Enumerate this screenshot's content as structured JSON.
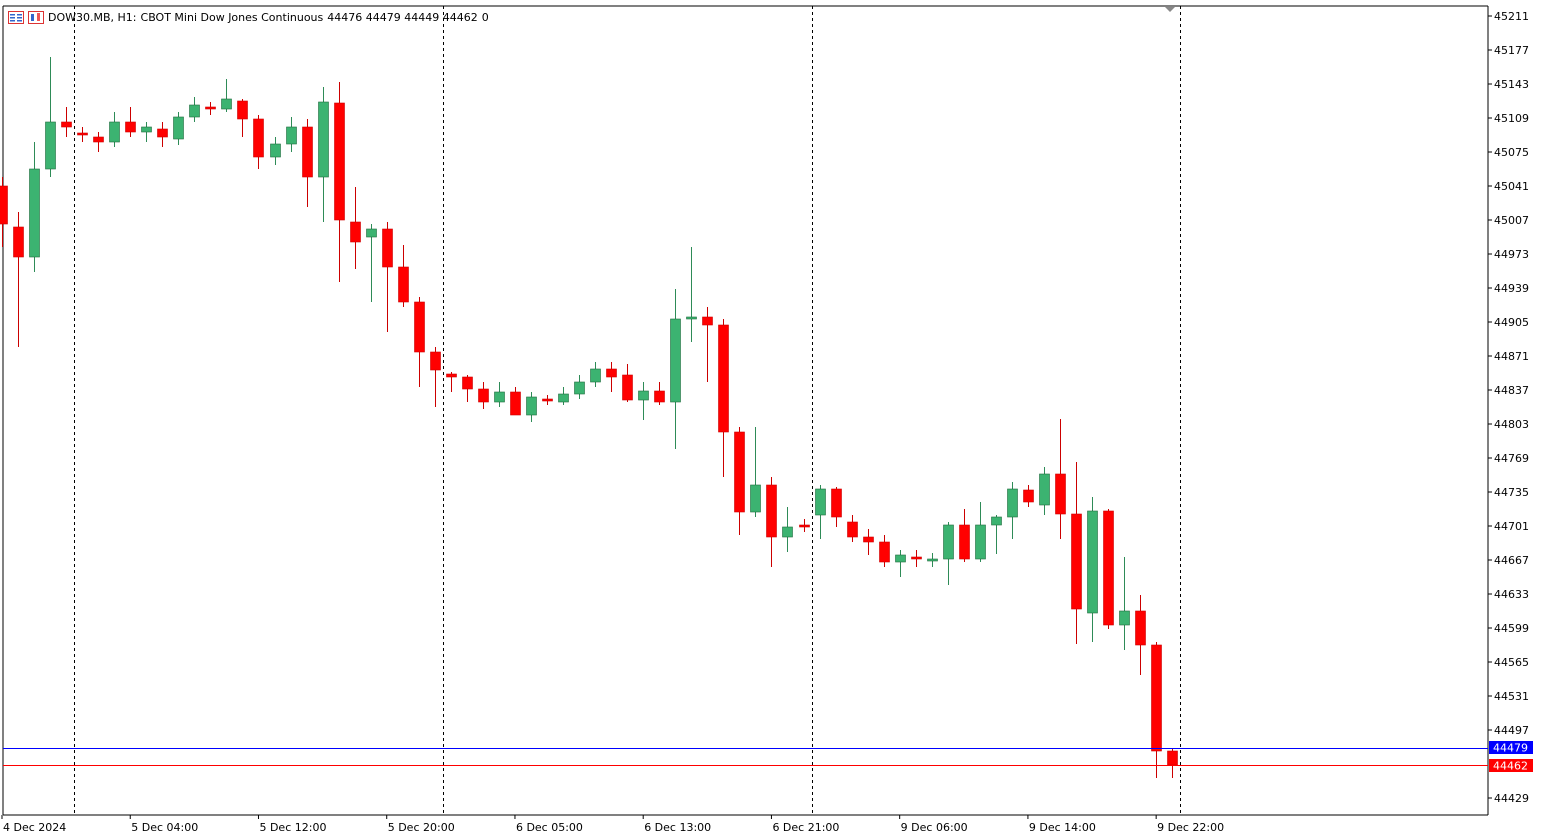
{
  "header": {
    "symbol_label": "DOW30.MB, H1:",
    "description": "CBOT Mini Dow Jones Continuous",
    "ohlc": "44476 44479 44449 44462",
    "volume": "0"
  },
  "colors": {
    "bull": "#3cb371",
    "bear": "#ff0000",
    "wick_bull": "#2e8b57",
    "wick_bear": "#cc0000",
    "bid_line": "#0000ff",
    "ask_line": "#ff0000",
    "grid_separator": "#000000",
    "background": "#ffffff"
  },
  "price_tags": {
    "ask": {
      "text": "44479",
      "value": 44479,
      "color": "#0000ff"
    },
    "bid": {
      "text": "44462",
      "value": 44462,
      "color": "#ff0000"
    }
  },
  "chart_data": {
    "type": "candlestick",
    "symbol": "DOW30.MB",
    "timeframe": "H1",
    "ylim": [
      44412,
      45221
    ],
    "y_ticks": [
      45211,
      45177,
      45143,
      45109,
      45075,
      45041,
      45007,
      44973,
      44939,
      44905,
      44871,
      44837,
      44803,
      44769,
      44735,
      44701,
      44667,
      44633,
      44599,
      44565,
      44531,
      44497,
      44429
    ],
    "x_labels": [
      "4 Dec 2024",
      "5 Dec 04:00",
      "5 Dec 12:00",
      "5 Dec 20:00",
      "6 Dec 05:00",
      "6 Dec 13:00",
      "6 Dec 21:00",
      "9 Dec 06:00",
      "9 Dec 14:00",
      "9 Dec 22:00"
    ],
    "x_label_bar_index": [
      0,
      8,
      16,
      24,
      32,
      40,
      48,
      56,
      64,
      72
    ],
    "day_separator_bar_index": [
      4.5,
      27.5,
      50.5,
      73.5
    ],
    "grid": false,
    "candles": [
      {
        "o": 45041,
        "h": 45050,
        "l": 44980,
        "c": 45003
      },
      {
        "o": 45000,
        "h": 45015,
        "l": 44880,
        "c": 44970
      },
      {
        "o": 44970,
        "h": 45085,
        "l": 44955,
        "c": 45058
      },
      {
        "o": 45058,
        "h": 45170,
        "l": 45050,
        "c": 45105
      },
      {
        "o": 45105,
        "h": 45120,
        "l": 45090,
        "c": 45100
      },
      {
        "o": 45094,
        "h": 45100,
        "l": 45085,
        "c": 45092
      },
      {
        "o": 45090,
        "h": 45095,
        "l": 45075,
        "c": 45085
      },
      {
        "o": 45085,
        "h": 45115,
        "l": 45080,
        "c": 45105
      },
      {
        "o": 45105,
        "h": 45120,
        "l": 45090,
        "c": 45095
      },
      {
        "o": 45095,
        "h": 45105,
        "l": 45085,
        "c": 45100
      },
      {
        "o": 45098,
        "h": 45105,
        "l": 45080,
        "c": 45090
      },
      {
        "o": 45088,
        "h": 45115,
        "l": 45082,
        "c": 45110
      },
      {
        "o": 45110,
        "h": 45130,
        "l": 45105,
        "c": 45122
      },
      {
        "o": 45120,
        "h": 45125,
        "l": 45112,
        "c": 45118
      },
      {
        "o": 45118,
        "h": 45148,
        "l": 45115,
        "c": 45128
      },
      {
        "o": 45126,
        "h": 45128,
        "l": 45090,
        "c": 45108
      },
      {
        "o": 45108,
        "h": 45112,
        "l": 45058,
        "c": 45070
      },
      {
        "o": 45070,
        "h": 45090,
        "l": 45062,
        "c": 45083
      },
      {
        "o": 45083,
        "h": 45110,
        "l": 45075,
        "c": 45100
      },
      {
        "o": 45100,
        "h": 45108,
        "l": 45020,
        "c": 45050
      },
      {
        "o": 45050,
        "h": 45140,
        "l": 45005,
        "c": 45125
      },
      {
        "o": 45124,
        "h": 45145,
        "l": 44945,
        "c": 45007
      },
      {
        "o": 45005,
        "h": 45040,
        "l": 44958,
        "c": 44985
      },
      {
        "o": 44990,
        "h": 45003,
        "l": 44925,
        "c": 44998
      },
      {
        "o": 44998,
        "h": 45005,
        "l": 44895,
        "c": 44960
      },
      {
        "o": 44960,
        "h": 44982,
        "l": 44920,
        "c": 44925
      },
      {
        "o": 44925,
        "h": 44930,
        "l": 44840,
        "c": 44875
      },
      {
        "o": 44875,
        "h": 44880,
        "l": 44820,
        "c": 44857
      },
      {
        "o": 44853,
        "h": 44855,
        "l": 44835,
        "c": 44850
      },
      {
        "o": 44850,
        "h": 44852,
        "l": 44825,
        "c": 44838
      },
      {
        "o": 44838,
        "h": 44845,
        "l": 44818,
        "c": 44825
      },
      {
        "o": 44825,
        "h": 44845,
        "l": 44820,
        "c": 44835
      },
      {
        "o": 44835,
        "h": 44840,
        "l": 44812,
        "c": 44812
      },
      {
        "o": 44812,
        "h": 44835,
        "l": 44805,
        "c": 44830
      },
      {
        "o": 44828,
        "h": 44832,
        "l": 44822,
        "c": 44826
      },
      {
        "o": 44825,
        "h": 44840,
        "l": 44822,
        "c": 44833
      },
      {
        "o": 44833,
        "h": 44852,
        "l": 44828,
        "c": 44845
      },
      {
        "o": 44845,
        "h": 44865,
        "l": 44840,
        "c": 44858
      },
      {
        "o": 44858,
        "h": 44865,
        "l": 44835,
        "c": 44850
      },
      {
        "o": 44852,
        "h": 44863,
        "l": 44825,
        "c": 44827
      },
      {
        "o": 44827,
        "h": 44845,
        "l": 44807,
        "c": 44836
      },
      {
        "o": 44836,
        "h": 44845,
        "l": 44822,
        "c": 44825
      },
      {
        "o": 44825,
        "h": 44938,
        "l": 44778,
        "c": 44908
      },
      {
        "o": 44908,
        "h": 44980,
        "l": 44885,
        "c": 44910
      },
      {
        "o": 44910,
        "h": 44920,
        "l": 44845,
        "c": 44902
      },
      {
        "o": 44902,
        "h": 44908,
        "l": 44750,
        "c": 44795
      },
      {
        "o": 44795,
        "h": 44800,
        "l": 44692,
        "c": 44715
      },
      {
        "o": 44715,
        "h": 44800,
        "l": 44710,
        "c": 44742
      },
      {
        "o": 44742,
        "h": 44750,
        "l": 44660,
        "c": 44690
      },
      {
        "o": 44690,
        "h": 44720,
        "l": 44675,
        "c": 44700
      },
      {
        "o": 44702,
        "h": 44708,
        "l": 44695,
        "c": 44700
      },
      {
        "o": 44712,
        "h": 44742,
        "l": 44688,
        "c": 44738
      },
      {
        "o": 44738,
        "h": 44740,
        "l": 44700,
        "c": 44710
      },
      {
        "o": 44705,
        "h": 44712,
        "l": 44685,
        "c": 44690
      },
      {
        "o": 44690,
        "h": 44698,
        "l": 44672,
        "c": 44685
      },
      {
        "o": 44685,
        "h": 44692,
        "l": 44660,
        "c": 44665
      },
      {
        "o": 44665,
        "h": 44677,
        "l": 44650,
        "c": 44672
      },
      {
        "o": 44670,
        "h": 44677,
        "l": 44660,
        "c": 44668
      },
      {
        "o": 44666,
        "h": 44674,
        "l": 44660,
        "c": 44668
      },
      {
        "o": 44668,
        "h": 44705,
        "l": 44642,
        "c": 44702
      },
      {
        "o": 44702,
        "h": 44718,
        "l": 44665,
        "c": 44668
      },
      {
        "o": 44668,
        "h": 44725,
        "l": 44665,
        "c": 44702
      },
      {
        "o": 44702,
        "h": 44712,
        "l": 44673,
        "c": 44710
      },
      {
        "o": 44710,
        "h": 44745,
        "l": 44688,
        "c": 44738
      },
      {
        "o": 44737,
        "h": 44742,
        "l": 44720,
        "c": 44725
      },
      {
        "o": 44722,
        "h": 44760,
        "l": 44712,
        "c": 44753
      },
      {
        "o": 44753,
        "h": 44808,
        "l": 44688,
        "c": 44713
      },
      {
        "o": 44713,
        "h": 44765,
        "l": 44583,
        "c": 44618
      },
      {
        "o": 44614,
        "h": 44730,
        "l": 44585,
        "c": 44716
      },
      {
        "o": 44716,
        "h": 44718,
        "l": 44598,
        "c": 44602
      },
      {
        "o": 44602,
        "h": 44670,
        "l": 44577,
        "c": 44616
      },
      {
        "o": 44616,
        "h": 44632,
        "l": 44552,
        "c": 44582
      },
      {
        "o": 44582,
        "h": 44585,
        "l": 44449,
        "c": 44476
      },
      {
        "o": 44476,
        "h": 44479,
        "l": 44449,
        "c": 44462
      }
    ]
  }
}
